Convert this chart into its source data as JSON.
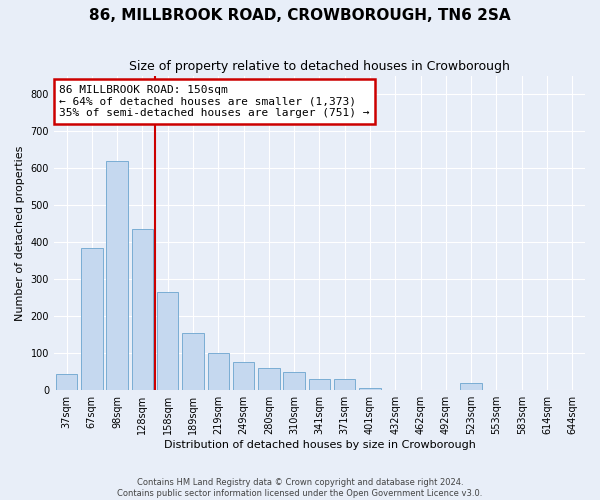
{
  "title": "86, MILLBROOK ROAD, CROWBOROUGH, TN6 2SA",
  "subtitle": "Size of property relative to detached houses in Crowborough",
  "xlabel": "Distribution of detached houses by size in Crowborough",
  "ylabel": "Number of detached properties",
  "categories": [
    "37sqm",
    "67sqm",
    "98sqm",
    "128sqm",
    "158sqm",
    "189sqm",
    "219sqm",
    "249sqm",
    "280sqm",
    "310sqm",
    "341sqm",
    "371sqm",
    "401sqm",
    "432sqm",
    "462sqm",
    "492sqm",
    "523sqm",
    "553sqm",
    "583sqm",
    "614sqm",
    "644sqm"
  ],
  "values": [
    45,
    385,
    620,
    435,
    265,
    155,
    100,
    75,
    60,
    50,
    30,
    30,
    5,
    0,
    0,
    0,
    20,
    0,
    0,
    0,
    0
  ],
  "bar_color": "#c5d8ef",
  "bar_edge_color": "#7aadd4",
  "redline_x": 4.0,
  "annotation_text": "86 MILLBROOK ROAD: 150sqm\n← 64% of detached houses are smaller (1,373)\n35% of semi-detached houses are larger (751) →",
  "annotation_box_color": "#ffffff",
  "annotation_box_edge": "#cc0000",
  "redline_color": "#cc0000",
  "ylim": [
    0,
    850
  ],
  "yticks": [
    0,
    100,
    200,
    300,
    400,
    500,
    600,
    700,
    800
  ],
  "footer": "Contains HM Land Registry data © Crown copyright and database right 2024.\nContains public sector information licensed under the Open Government Licence v3.0.",
  "background_color": "#e8eef8",
  "grid_color": "#ffffff",
  "title_fontsize": 11,
  "tick_fontsize": 7,
  "ylabel_fontsize": 8,
  "xlabel_fontsize": 8,
  "annotation_fontsize": 8
}
